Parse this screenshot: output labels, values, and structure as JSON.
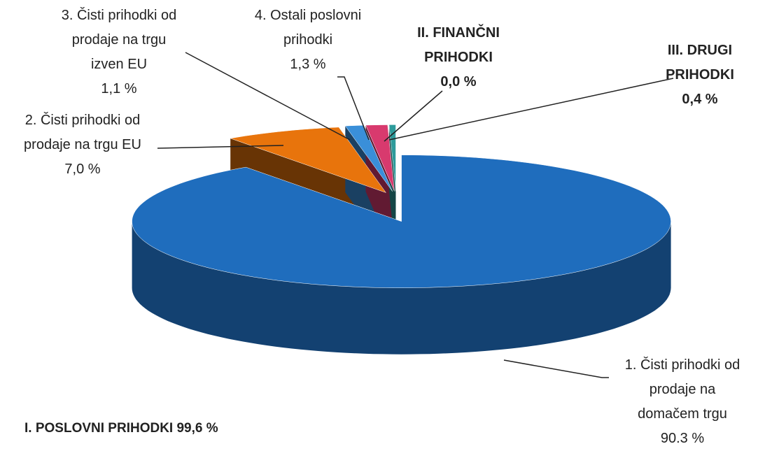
{
  "chart_data": {
    "type": "pie3d",
    "categories": [
      "1. Čisti prihodki od\nprodaje na\ndomačem trgu",
      "2. Čisti prihodki od\nprodaje na trgu EU",
      "3. Čisti prihodki od\nprodaje na trgu\nizven EU",
      "4. Ostali poslovni\nprihodki",
      "II. FINANČNI\nPRIHODKI",
      "III. DRUGI\nPRIHODKI"
    ],
    "values": [
      90.3,
      7.0,
      1.1,
      1.3,
      0.0,
      0.4
    ],
    "value_labels": [
      "90.3 %",
      "7,0 %",
      "1,1 %",
      "1,3 %",
      "0,0 %",
      "0,4 %"
    ],
    "colors": [
      "#1f6dbd",
      "#e8740c",
      "#3a8fd9",
      "#d83a6e",
      "#a0a0a0",
      "#2e9b9b"
    ],
    "annotation": "I. POSLOVNI PRIHODKI 99,6 %"
  }
}
